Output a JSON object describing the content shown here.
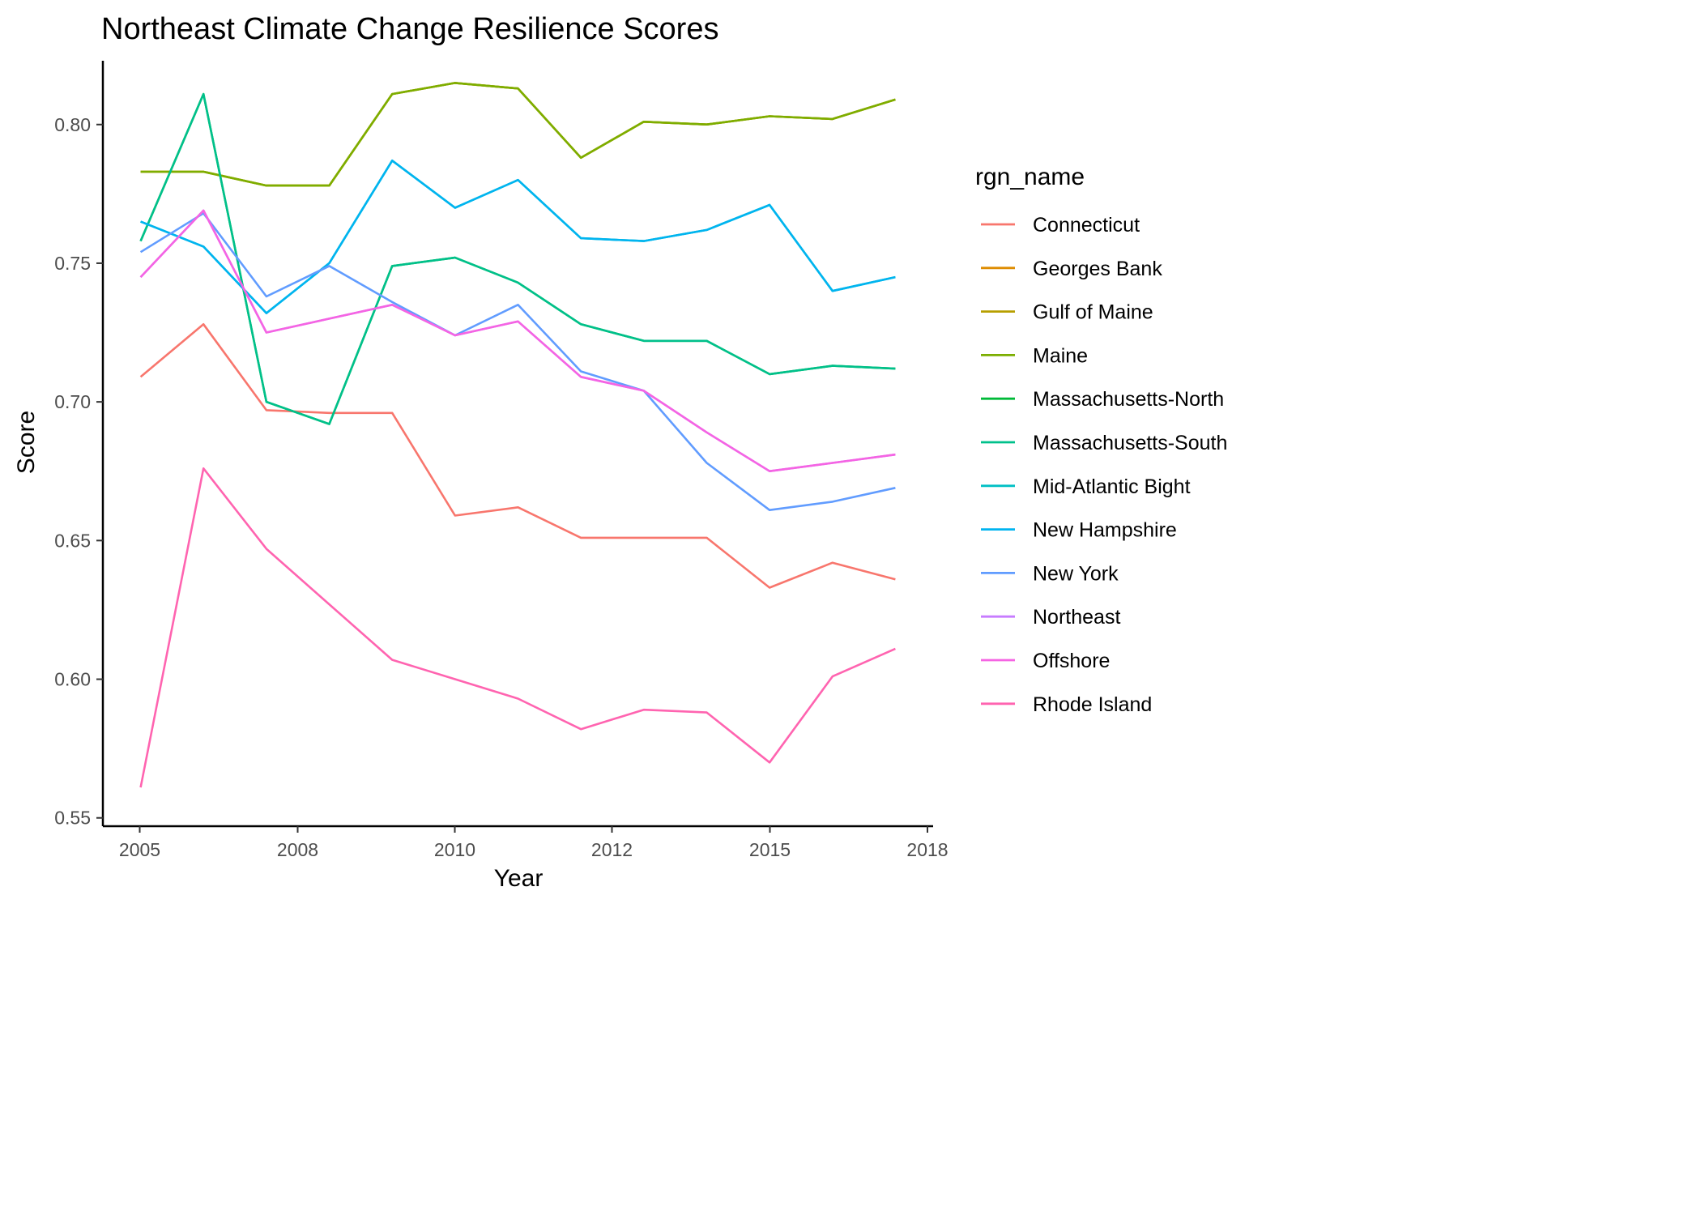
{
  "chart_data": {
    "type": "line",
    "title": "Northeast Climate Change Resilience Scores",
    "xlabel": "Year",
    "ylabel": "Score",
    "xlim": [
      2004.4,
      2017.6
    ],
    "ylim": [
      0.547,
      0.823
    ],
    "xticks": [
      "2005",
      "2008",
      "2010",
      "2012",
      "2015",
      "2018"
    ],
    "yticks": [
      "0.55",
      "0.60",
      "0.65",
      "0.70",
      "0.75",
      "0.80"
    ],
    "x": [
      2005,
      2006,
      2007,
      2008,
      2009,
      2010,
      2011,
      2012,
      2013,
      2014,
      2015,
      2016,
      2017
    ],
    "grid": false,
    "legend": {
      "title": "rgn_name",
      "position": "right"
    },
    "series": [
      {
        "name": "Connecticut",
        "color": "#F8766D",
        "values": [
          0.709,
          0.728,
          0.697,
          0.696,
          0.696,
          0.659,
          0.662,
          0.651,
          0.651,
          0.651,
          0.633,
          0.642,
          0.636
        ]
      },
      {
        "name": "Georges Bank",
        "color": "#DE8C00",
        "values": [
          0.783,
          0.783,
          0.778,
          0.778,
          0.811,
          0.815,
          0.813,
          0.788,
          0.801,
          0.8,
          0.803,
          0.802,
          0.809
        ]
      },
      {
        "name": "Gulf of Maine",
        "color": "#B79F00",
        "values": [
          0.783,
          0.783,
          0.778,
          0.778,
          0.811,
          0.815,
          0.813,
          0.788,
          0.801,
          0.8,
          0.803,
          0.802,
          0.809
        ]
      },
      {
        "name": "Maine",
        "color": "#7CAE00",
        "values": [
          0.783,
          0.783,
          0.778,
          0.778,
          0.811,
          0.815,
          0.813,
          0.788,
          0.801,
          0.8,
          0.803,
          0.802,
          0.809
        ]
      },
      {
        "name": "Massachusetts-North",
        "color": "#00BA38",
        "values": [
          0.758,
          0.811,
          0.7,
          0.692,
          0.749,
          0.752,
          0.743,
          0.728,
          0.722,
          0.722,
          0.71,
          0.713,
          0.712
        ]
      },
      {
        "name": "Massachusetts-South",
        "color": "#00C08B",
        "values": [
          0.758,
          0.811,
          0.7,
          0.692,
          0.749,
          0.752,
          0.743,
          0.728,
          0.722,
          0.722,
          0.71,
          0.713,
          0.712
        ]
      },
      {
        "name": "Mid-Atlantic Bight",
        "color": "#00BFC4",
        "values": [
          0.765,
          0.756,
          0.732,
          0.75,
          0.787,
          0.77,
          0.78,
          0.759,
          0.758,
          0.762,
          0.771,
          0.74,
          0.745
        ]
      },
      {
        "name": "New Hampshire",
        "color": "#00B4F0",
        "values": [
          0.765,
          0.756,
          0.732,
          0.75,
          0.787,
          0.77,
          0.78,
          0.759,
          0.758,
          0.762,
          0.771,
          0.74,
          0.745
        ]
      },
      {
        "name": "New York",
        "color": "#619CFF",
        "values": [
          0.754,
          0.768,
          0.738,
          0.749,
          0.736,
          0.724,
          0.735,
          0.711,
          0.704,
          0.678,
          0.661,
          0.664,
          0.669
        ]
      },
      {
        "name": "Northeast",
        "color": "#C77CFF",
        "values": [
          0.745,
          0.769,
          0.725,
          0.73,
          0.735,
          0.724,
          0.729,
          0.709,
          0.704,
          0.689,
          0.675,
          0.678,
          0.681
        ]
      },
      {
        "name": "Offshore",
        "color": "#F564E3",
        "values": [
          0.745,
          0.769,
          0.725,
          0.73,
          0.735,
          0.724,
          0.729,
          0.709,
          0.704,
          0.689,
          0.675,
          0.678,
          0.681
        ]
      },
      {
        "name": "Rhode Island",
        "color": "#FF64B0",
        "values": [
          0.561,
          0.676,
          0.647,
          0.627,
          0.607,
          0.6,
          0.593,
          0.582,
          0.589,
          0.588,
          0.57,
          0.601,
          0.611
        ]
      }
    ]
  }
}
